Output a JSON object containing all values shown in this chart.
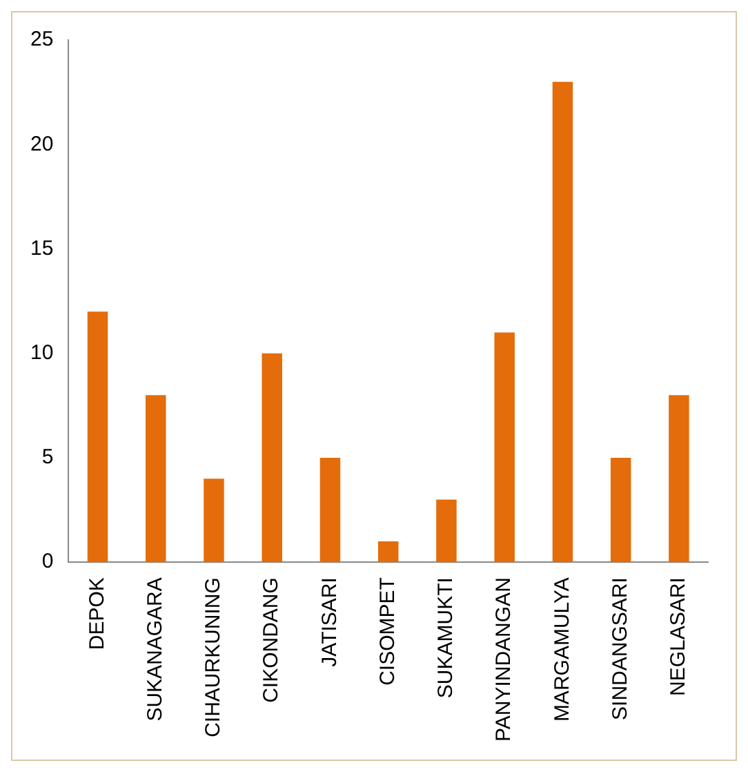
{
  "chart_data": {
    "type": "bar",
    "categories": [
      "DEPOK",
      "SUKANAGARA",
      "CIHAURKUNING",
      "CIKONDANG",
      "JATISARI",
      "CISOMPET",
      "SUKAMUKTI",
      "PANYINDANGAN",
      "MARGAMULYA",
      "SINDANGSARI",
      "NEGLASARI"
    ],
    "values": [
      12,
      8,
      4,
      10,
      5,
      1,
      3,
      11,
      23,
      5,
      8
    ],
    "color": "#e46c0a",
    "ylim": [
      0,
      25
    ],
    "yticks": [
      0,
      5,
      10,
      15,
      20,
      25
    ],
    "grid": false
  }
}
